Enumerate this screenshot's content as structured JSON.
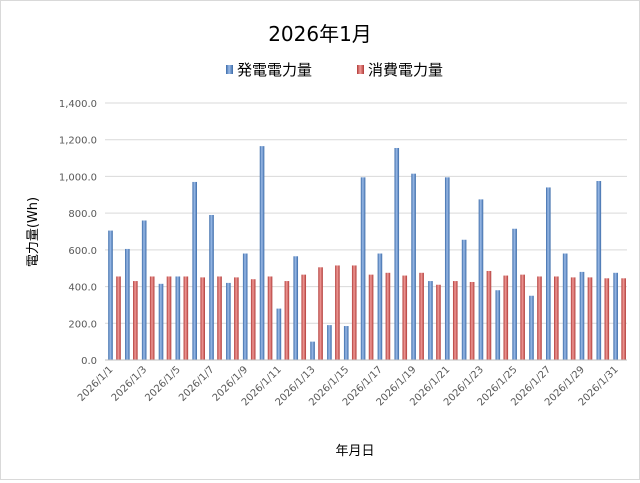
{
  "chart_data": {
    "type": "bar",
    "title": "2026年1月",
    "xlabel": "年月日",
    "ylabel": "電力量(Wh)",
    "ylim": [
      0,
      1400
    ],
    "ytick_step": 200,
    "ytick_labels": [
      "0.0",
      "200.0",
      "400.0",
      "600.0",
      "800.0",
      "1,000.0",
      "1,200.0",
      "1,400.0"
    ],
    "grid": true,
    "legend_position": "top",
    "categories": [
      "2026/1/1",
      "2026/1/2",
      "2026/1/3",
      "2026/1/4",
      "2026/1/5",
      "2026/1/6",
      "2026/1/7",
      "2026/1/8",
      "2026/1/9",
      "2026/1/10",
      "2026/1/11",
      "2026/1/12",
      "2026/1/13",
      "2026/1/14",
      "2026/1/15",
      "2026/1/16",
      "2026/1/17",
      "2026/1/18",
      "2026/1/19",
      "2026/1/20",
      "2026/1/21",
      "2026/1/22",
      "2026/1/23",
      "2026/1/24",
      "2026/1/25",
      "2026/1/26",
      "2026/1/27",
      "2026/1/28",
      "2026/1/29",
      "2026/1/30",
      "2026/1/31"
    ],
    "x_tick_labels_shown": [
      "2026/1/1",
      "2026/1/3",
      "2026/1/5",
      "2026/1/7",
      "2026/1/9",
      "2026/1/11",
      "2026/1/13",
      "2026/1/15",
      "2026/1/17",
      "2026/1/19",
      "2026/1/21",
      "2026/1/23",
      "2026/1/25",
      "2026/1/27",
      "2026/1/29",
      "2026/1/31"
    ],
    "series": [
      {
        "name": "発電電力量",
        "color": "#4f81bd",
        "values": [
          705,
          605,
          760,
          415,
          455,
          970,
          790,
          420,
          580,
          1165,
          280,
          565,
          100,
          190,
          185,
          995,
          580,
          1155,
          1015,
          430,
          995,
          655,
          875,
          380,
          715,
          350,
          940,
          580,
          480,
          975,
          475
        ]
      },
      {
        "name": "消費電力量",
        "color": "#c0504d",
        "values": [
          455,
          430,
          455,
          455,
          455,
          450,
          455,
          450,
          440,
          455,
          430,
          465,
          505,
          515,
          515,
          465,
          475,
          460,
          475,
          410,
          430,
          425,
          485,
          460,
          465,
          455,
          455,
          450,
          450,
          445,
          445
        ]
      }
    ]
  }
}
